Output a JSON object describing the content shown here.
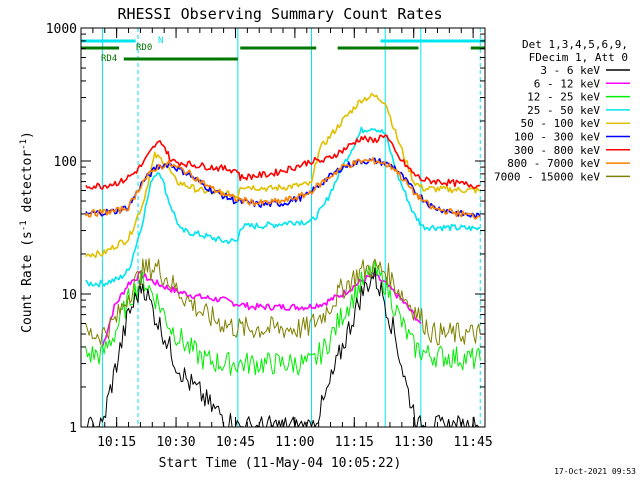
{
  "chart_data": {
    "type": "line",
    "title": "RHESSI Observing Summary Count Rates",
    "xlabel": "Start Time (11-May-04 10:05:22)",
    "ylabel": "Count Rate (s⁻¹ detector⁻¹)",
    "ylabel_parts": [
      "Count Rate (s",
      "-1",
      " detector",
      "-1",
      ")"
    ],
    "y_scale": "log",
    "ylim": [
      1,
      1000
    ],
    "xlim_minutes": [
      10.1,
      11.8
    ],
    "x_ticks": [
      {
        "t": "10:15",
        "m": 10.25
      },
      {
        "t": "10:30",
        "m": 10.5
      },
      {
        "t": "10:45",
        "m": 10.75
      },
      {
        "t": "11:00",
        "m": 11.0
      },
      {
        "t": "11:15",
        "m": 11.25
      },
      {
        "t": "11:30",
        "m": 11.5
      },
      {
        "t": "11:45",
        "m": 11.75
      }
    ],
    "y_ticks": [
      {
        "t": "1",
        "v": 1
      },
      {
        "t": "10",
        "v": 10
      },
      {
        "t": "100",
        "v": 100
      },
      {
        "t": "1000",
        "v": 1000
      }
    ],
    "legend_header": [
      "Det 1,3,4,5,6,9,",
      "FDecim 1, Att 0"
    ],
    "legend_position": "top-right",
    "flags": [
      {
        "label": "N",
        "color": "#00e5ee",
        "segments": [
          [
            10.1,
            10.33
          ],
          [
            11.36,
            11.8
          ]
        ]
      },
      {
        "label": "RD0",
        "color": "#007700",
        "segments": [
          [
            10.1,
            10.26
          ],
          [
            10.77,
            11.09
          ],
          [
            11.18,
            11.52
          ],
          [
            11.74,
            11.8
          ]
        ]
      },
      {
        "label": "RD4",
        "color": "#007700",
        "segments": [
          [
            10.28,
            10.76
          ]
        ]
      }
    ],
    "dashed_markers_hours": [
      10.34,
      11.78
    ],
    "vertical_markers_hours": [
      10.19,
      10.76,
      11.07,
      11.38,
      11.53
    ],
    "series": [
      {
        "name": "3 - 6 keV",
        "color": "#000000",
        "points": [
          [
            10.12,
            1.0
          ],
          [
            10.19,
            1.0
          ],
          [
            10.21,
            1.5
          ],
          [
            10.25,
            3.0
          ],
          [
            10.3,
            7.0
          ],
          [
            10.36,
            12.0
          ],
          [
            10.41,
            7.0
          ],
          [
            10.46,
            4.5
          ],
          [
            10.5,
            3.0
          ],
          [
            10.55,
            2.2
          ],
          [
            10.6,
            1.8
          ],
          [
            10.65,
            1.4
          ],
          [
            10.7,
            1.2
          ],
          [
            10.75,
            1.0
          ],
          [
            10.82,
            1.0
          ],
          [
            11.0,
            1.0
          ],
          [
            11.07,
            1.0
          ],
          [
            11.12,
            1.5
          ],
          [
            11.2,
            4.0
          ],
          [
            11.28,
            10.0
          ],
          [
            11.33,
            14.0
          ],
          [
            11.37,
            10.0
          ],
          [
            11.42,
            5.0
          ],
          [
            11.47,
            2.0
          ],
          [
            11.52,
            1.0
          ],
          [
            11.8,
            1.0
          ]
        ]
      },
      {
        "name": "6 - 12 keV",
        "color": "#ff00ff",
        "points": [
          [
            10.19,
            4.0
          ],
          [
            10.24,
            8.0
          ],
          [
            10.3,
            12.0
          ],
          [
            10.35,
            14.0
          ],
          [
            10.42,
            12.0
          ],
          [
            10.5,
            10.5
          ],
          [
            10.6,
            9.5
          ],
          [
            10.7,
            9.0
          ],
          [
            10.75,
            8.5
          ],
          [
            10.82,
            8.0
          ],
          [
            10.95,
            8.0
          ],
          [
            11.05,
            8.0
          ],
          [
            11.12,
            8.5
          ],
          [
            11.2,
            10.0
          ],
          [
            11.28,
            12.5
          ],
          [
            11.33,
            14.0
          ],
          [
            11.38,
            12.0
          ],
          [
            11.45,
            9.0
          ],
          [
            11.5,
            7.0
          ],
          [
            11.53,
            6.0
          ]
        ]
      },
      {
        "name": "12 - 25 keV",
        "color": "#00ee00",
        "points": [
          [
            10.12,
            3.5
          ],
          [
            10.19,
            3.5
          ],
          [
            10.24,
            5.0
          ],
          [
            10.3,
            9.0
          ],
          [
            10.36,
            13.0
          ],
          [
            10.42,
            9.0
          ],
          [
            10.48,
            5.5
          ],
          [
            10.55,
            4.0
          ],
          [
            10.62,
            3.2
          ],
          [
            10.7,
            3.0
          ],
          [
            10.75,
            3.0
          ],
          [
            10.82,
            3.0
          ],
          [
            11.0,
            3.0
          ],
          [
            11.07,
            3.0
          ],
          [
            11.13,
            4.0
          ],
          [
            11.2,
            7.0
          ],
          [
            11.28,
            12.0
          ],
          [
            11.33,
            15.0
          ],
          [
            11.38,
            12.0
          ],
          [
            11.45,
            6.0
          ],
          [
            11.5,
            4.0
          ],
          [
            11.56,
            3.5
          ],
          [
            11.78,
            3.2
          ]
        ]
      },
      {
        "name": "25 - 50 keV",
        "color": "#00e5ee",
        "points": [
          [
            10.12,
            12.0
          ],
          [
            10.19,
            12.0
          ],
          [
            10.26,
            13.0
          ],
          [
            10.3,
            15.0
          ],
          [
            10.35,
            30.0
          ],
          [
            10.4,
            75.0
          ],
          [
            10.43,
            85.0
          ],
          [
            10.47,
            50.0
          ],
          [
            10.52,
            30.0
          ],
          [
            10.6,
            28.0
          ],
          [
            10.7,
            25.0
          ],
          [
            10.76,
            25.0
          ],
          [
            10.77,
            32.0
          ],
          [
            10.9,
            33.0
          ],
          [
            11.0,
            35.0
          ],
          [
            11.07,
            35.0
          ],
          [
            11.12,
            45.0
          ],
          [
            11.2,
            90.0
          ],
          [
            11.28,
            170.0
          ],
          [
            11.33,
            180.0
          ],
          [
            11.38,
            160.0
          ],
          [
            11.43,
            80.0
          ],
          [
            11.5,
            40.0
          ],
          [
            11.54,
            32.0
          ],
          [
            11.78,
            31.0
          ]
        ]
      },
      {
        "name": "50 - 100 keV",
        "color": "#e0c000",
        "points": [
          [
            10.12,
            20.0
          ],
          [
            10.19,
            20.0
          ],
          [
            10.26,
            24.0
          ],
          [
            10.3,
            26.0
          ],
          [
            10.36,
            48.0
          ],
          [
            10.41,
            110.0
          ],
          [
            10.45,
            100.0
          ],
          [
            10.5,
            70.0
          ],
          [
            10.6,
            60.0
          ],
          [
            10.7,
            57.0
          ],
          [
            10.76,
            55.0
          ],
          [
            10.77,
            65.0
          ],
          [
            10.9,
            62.0
          ],
          [
            11.0,
            65.0
          ],
          [
            11.07,
            67.0
          ],
          [
            11.1,
            120.0
          ],
          [
            11.2,
            200.0
          ],
          [
            11.28,
            290.0
          ],
          [
            11.33,
            310.0
          ],
          [
            11.38,
            280.0
          ],
          [
            11.43,
            150.0
          ],
          [
            11.5,
            70.0
          ],
          [
            11.54,
            62.0
          ],
          [
            11.78,
            60.0
          ]
        ]
      },
      {
        "name": "100 - 300 keV",
        "color": "#0000ff",
        "points": [
          [
            10.12,
            40.0
          ],
          [
            10.25,
            42.0
          ],
          [
            10.3,
            45.0
          ],
          [
            10.36,
            70.0
          ],
          [
            10.42,
            90.0
          ],
          [
            10.47,
            95.0
          ],
          [
            10.55,
            80.0
          ],
          [
            10.65,
            60.0
          ],
          [
            10.75,
            50.0
          ],
          [
            10.85,
            47.0
          ],
          [
            10.95,
            48.0
          ],
          [
            11.05,
            55.0
          ],
          [
            11.12,
            70.0
          ],
          [
            11.2,
            90.0
          ],
          [
            11.28,
            100.0
          ],
          [
            11.35,
            100.0
          ],
          [
            11.42,
            90.0
          ],
          [
            11.5,
            60.0
          ],
          [
            11.58,
            45.0
          ],
          [
            11.7,
            40.0
          ],
          [
            11.78,
            38.0
          ]
        ]
      },
      {
        "name": "300 - 800 keV",
        "color": "#ff0000",
        "points": [
          [
            10.12,
            65.0
          ],
          [
            10.19,
            65.0
          ],
          [
            10.27,
            70.0
          ],
          [
            10.32,
            80.0
          ],
          [
            10.36,
            95.0
          ],
          [
            10.41,
            130.0
          ],
          [
            10.44,
            140.0
          ],
          [
            10.48,
            100.0
          ],
          [
            10.55,
            95.0
          ],
          [
            10.65,
            90.0
          ],
          [
            10.76,
            85.0
          ],
          [
            10.77,
            75.0
          ],
          [
            10.9,
            80.0
          ],
          [
            11.0,
            90.0
          ],
          [
            11.07,
            100.0
          ],
          [
            11.12,
            100.0
          ],
          [
            11.2,
            120.0
          ],
          [
            11.28,
            150.0
          ],
          [
            11.33,
            140.0
          ],
          [
            11.38,
            160.0
          ],
          [
            11.43,
            110.0
          ],
          [
            11.5,
            80.0
          ],
          [
            11.54,
            72.0
          ],
          [
            11.78,
            65.0
          ]
        ]
      },
      {
        "name": "800 - 7000 keV",
        "color": "#ff7f00",
        "points": [
          [
            10.12,
            40.0
          ],
          [
            10.25,
            42.0
          ],
          [
            10.3,
            45.0
          ],
          [
            10.36,
            70.0
          ],
          [
            10.42,
            90.0
          ],
          [
            10.47,
            95.0
          ],
          [
            10.55,
            82.0
          ],
          [
            10.65,
            62.0
          ],
          [
            10.75,
            52.0
          ],
          [
            10.85,
            48.0
          ],
          [
            10.95,
            50.0
          ],
          [
            11.05,
            56.0
          ],
          [
            11.12,
            70.0
          ],
          [
            11.2,
            90.0
          ],
          [
            11.28,
            100.0
          ],
          [
            11.35,
            100.0
          ],
          [
            11.42,
            88.0
          ],
          [
            11.5,
            58.0
          ],
          [
            11.58,
            44.0
          ],
          [
            11.7,
            40.0
          ],
          [
            11.78,
            38.0
          ]
        ]
      },
      {
        "name": "7000 - 15000 keV",
        "color": "#808000",
        "points": [
          [
            10.12,
            5.0
          ],
          [
            10.19,
            5.0
          ],
          [
            10.25,
            6.5
          ],
          [
            10.3,
            10.0
          ],
          [
            10.36,
            15.0
          ],
          [
            10.42,
            16.0
          ],
          [
            10.48,
            12.0
          ],
          [
            10.55,
            9.0
          ],
          [
            10.62,
            7.0
          ],
          [
            10.7,
            6.0
          ],
          [
            10.76,
            5.5
          ],
          [
            10.9,
            5.5
          ],
          [
            11.05,
            5.5
          ],
          [
            11.12,
            7.0
          ],
          [
            11.2,
            11.0
          ],
          [
            11.28,
            15.0
          ],
          [
            11.33,
            16.0
          ],
          [
            11.38,
            15.0
          ],
          [
            11.45,
            10.0
          ],
          [
            11.52,
            7.0
          ],
          [
            11.58,
            5.0
          ],
          [
            11.78,
            5.0
          ]
        ]
      }
    ]
  },
  "footer": {
    "timestamp": "17-Oct-2021 09:53"
  }
}
